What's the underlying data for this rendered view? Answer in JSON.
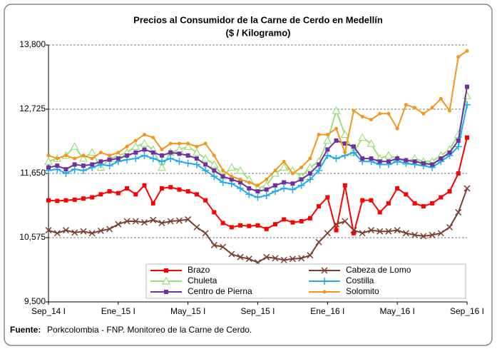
{
  "chart_data": {
    "type": "line",
    "title": "Precios al Consumidor  de la Carne de Cerdo en Medellín",
    "subtitle": "($ / Kilogramo)",
    "categories": [
      "Sep_14 I",
      null,
      null,
      null,
      null,
      null,
      null,
      null,
      "Ene_15 I",
      null,
      null,
      null,
      null,
      null,
      null,
      null,
      "May_15 I",
      null,
      null,
      null,
      null,
      null,
      null,
      null,
      "Sep_15 I",
      null,
      null,
      null,
      null,
      null,
      null,
      null,
      "Ene_16 I",
      null,
      null,
      null,
      null,
      null,
      null,
      null,
      "May_16 I",
      null,
      null,
      null,
      null,
      null,
      null,
      null,
      "Sep_16 I"
    ],
    "ylim": [
      9500,
      13800
    ],
    "yticks": [
      {
        "value": 9500,
        "label": "9,500"
      },
      {
        "value": 10575,
        "label": "10,575"
      },
      {
        "value": 11650,
        "label": "11,650"
      },
      {
        "value": 12725,
        "label": "12,725"
      },
      {
        "value": 13800,
        "label": "13,800"
      }
    ],
    "grid": true,
    "legend": "bottom",
    "series": [
      {
        "name": "Brazo",
        "color": "#ff0000",
        "marker": "square",
        "values": [
          11200,
          11190,
          11200,
          11210,
          11230,
          11250,
          11300,
          11350,
          11320,
          11400,
          11300,
          11450,
          11150,
          11400,
          11420,
          11380,
          11350,
          11300,
          11200,
          11000,
          10820,
          10750,
          10780,
          10770,
          10780,
          10720,
          10800,
          10880,
          10830,
          10850,
          10900,
          11100,
          11250,
          10700,
          11450,
          10650,
          11200,
          11200,
          11000,
          11150,
          11400,
          11300,
          11150,
          11100,
          11150,
          11250,
          11350,
          11650,
          12250
        ]
      },
      {
        "name": "Cabeza de Lomo",
        "color": "#7b3f2e",
        "marker": "x",
        "values": [
          10700,
          10650,
          10700,
          10660,
          10680,
          10650,
          10690,
          10720,
          10800,
          10850,
          10850,
          10830,
          10870,
          10820,
          10850,
          10860,
          10880,
          10750,
          10650,
          10450,
          10420,
          10300,
          10250,
          10220,
          10160,
          10250,
          10230,
          10200,
          10220,
          10230,
          10280,
          10500,
          10650,
          10800,
          10850,
          10700,
          10650,
          10700,
          10680,
          10680,
          10700,
          10650,
          10620,
          10600,
          10620,
          10650,
          10750,
          11000,
          11400
        ]
      },
      {
        "name": "Chuleta",
        "color": "#99e07a",
        "marker": "triangle",
        "values": [
          11850,
          11900,
          11950,
          12100,
          11900,
          12000,
          11750,
          11900,
          11950,
          12000,
          12100,
          12150,
          12050,
          11750,
          12000,
          12050,
          12100,
          12000,
          11900,
          11800,
          11600,
          11750,
          11700,
          11550,
          11400,
          11450,
          11650,
          11750,
          11700,
          11600,
          11750,
          11850,
          12200,
          12700,
          12300,
          12000,
          12250,
          12150,
          11900,
          11950,
          11900,
          11850,
          11900,
          11850,
          11850,
          11950,
          12050,
          12300,
          12950
        ]
      },
      {
        "name": "Costilla",
        "color": "#22aaee",
        "marker": "plus",
        "values": [
          11700,
          11720,
          11650,
          11720,
          11700,
          11750,
          11800,
          11780,
          11850,
          11880,
          11900,
          11950,
          11900,
          11850,
          11900,
          11850,
          11820,
          11800,
          11700,
          11600,
          11500,
          11480,
          11400,
          11300,
          11250,
          11280,
          11350,
          11400,
          11380,
          11450,
          11550,
          11700,
          11950,
          11900,
          11950,
          12000,
          11850,
          11850,
          11800,
          11800,
          11850,
          11820,
          11800,
          11780,
          11750,
          11850,
          11950,
          12100,
          12800
        ]
      },
      {
        "name": "Centro de Pierna",
        "color": "#7030a0",
        "marker": "square",
        "values": [
          11750,
          11780,
          11720,
          11800,
          11780,
          11800,
          11850,
          11880,
          11900,
          11950,
          12000,
          12050,
          12000,
          11950,
          12000,
          11980,
          11950,
          11900,
          11800,
          11700,
          11600,
          11550,
          11500,
          11400,
          11350,
          11380,
          11450,
          11500,
          11480,
          11550,
          11650,
          11800,
          12050,
          12200,
          12150,
          12100,
          11900,
          11900,
          11850,
          11850,
          11900,
          11870,
          11850,
          11820,
          11800,
          11900,
          12000,
          12200,
          13100
        ]
      },
      {
        "name": "Solomito",
        "color": "#f7941d",
        "marker": "circle",
        "values": [
          11950,
          11900,
          11950,
          11900,
          11950,
          11900,
          12000,
          11950,
          12000,
          12100,
          12200,
          12300,
          12250,
          12050,
          12150,
          12150,
          12150,
          12100,
          12150,
          11950,
          11700,
          11600,
          11550,
          11500,
          11450,
          11550,
          11700,
          11850,
          11650,
          11750,
          11900,
          12300,
          12300,
          12400,
          12000,
          12700,
          12600,
          12550,
          12650,
          12650,
          12400,
          12800,
          12750,
          12650,
          12750,
          12900,
          12700,
          13600,
          13700
        ]
      }
    ],
    "source_label": "Fuente:",
    "source_text": "Porkcolombia - FNP.  Monitoreo de la Carne de Cerdo."
  }
}
